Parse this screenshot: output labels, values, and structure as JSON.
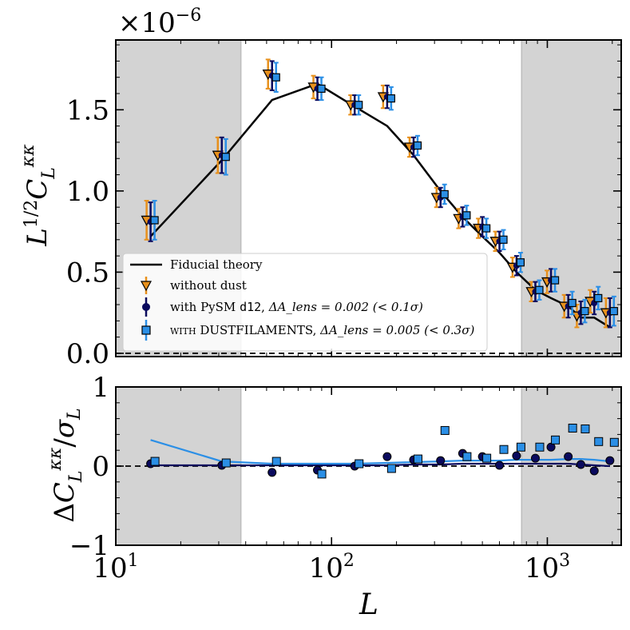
{
  "chart_data": [
    {
      "type": "line",
      "ylabel": "L^{1/2} C_L^{κκ}",
      "scale_factor_label": "×10",
      "scale_factor_exponent": "−6",
      "xscale": "log",
      "xlim": [
        10,
        2200
      ],
      "ylim": [
        -0.02,
        1.93
      ],
      "yticks": [
        0.0,
        0.5,
        1.0,
        1.5
      ],
      "ytick_labels": [
        "0.0",
        "0.5",
        "1.0",
        "1.5"
      ],
      "shaded_ranges": [
        [
          10,
          38
        ],
        [
          760,
          2200
        ]
      ],
      "zero_line": "dashed",
      "legend_position": "lower-left",
      "series": [
        {
          "name": "Fiducial theory",
          "kind": "line",
          "color": "#000000",
          "x": [
            14.5,
            31,
            53,
            86,
            128,
            181,
            240,
            320,
            405,
            500,
            600,
            720,
            880,
            1040,
            1250,
            1430,
            1650,
            1950
          ],
          "y": [
            0.72,
            1.19,
            1.56,
            1.66,
            1.52,
            1.4,
            1.22,
            1.0,
            0.84,
            0.72,
            0.62,
            0.5,
            0.39,
            0.34,
            0.29,
            0.22,
            0.22,
            0.16
          ]
        },
        {
          "name": "without dust",
          "kind": "errorbar",
          "marker": "triangle-down",
          "color": "#e8911c",
          "x": [
            14.5,
            31,
            53,
            86,
            128,
            181,
            240,
            320,
            405,
            500,
            600,
            720,
            880,
            1040,
            1250,
            1430,
            1650,
            1950
          ],
          "y": [
            0.82,
            1.22,
            1.72,
            1.64,
            1.53,
            1.58,
            1.27,
            0.96,
            0.83,
            0.77,
            0.69,
            0.53,
            0.38,
            0.44,
            0.29,
            0.23,
            0.32,
            0.25
          ],
          "err": [
            0.12,
            0.11,
            0.09,
            0.07,
            0.06,
            0.07,
            0.06,
            0.06,
            0.06,
            0.06,
            0.06,
            0.06,
            0.06,
            0.07,
            0.07,
            0.07,
            0.07,
            0.09
          ]
        },
        {
          "name_prefix": "with PySM",
          "name_code": "d12",
          "name_suffix": "ΔA_lens = 0.002 (< 0.1σ)",
          "kind": "errorbar",
          "marker": "circle",
          "color": "#0a0a5e",
          "x": [
            14.5,
            31,
            53,
            86,
            128,
            181,
            240,
            320,
            405,
            500,
            600,
            720,
            880,
            1040,
            1250,
            1430,
            1650,
            1950
          ],
          "y": [
            0.81,
            1.22,
            1.71,
            1.63,
            1.53,
            1.58,
            1.27,
            0.96,
            0.84,
            0.78,
            0.69,
            0.54,
            0.38,
            0.45,
            0.29,
            0.25,
            0.31,
            0.25
          ],
          "err": [
            0.12,
            0.11,
            0.09,
            0.07,
            0.06,
            0.07,
            0.06,
            0.06,
            0.06,
            0.06,
            0.06,
            0.06,
            0.06,
            0.07,
            0.07,
            0.07,
            0.07,
            0.09
          ]
        },
        {
          "name_prefix": "with DUSTFILAMENTS,",
          "name_suffix": "ΔA_lens = 0.005 (< 0.3σ)",
          "kind": "errorbar",
          "marker": "square",
          "color": "#2b8fe6",
          "x": [
            14.5,
            31,
            53,
            86,
            128,
            181,
            240,
            320,
            405,
            500,
            600,
            720,
            880,
            1040,
            1250,
            1430,
            1650,
            1950
          ],
          "y": [
            0.82,
            1.21,
            1.7,
            1.63,
            1.53,
            1.57,
            1.28,
            0.98,
            0.85,
            0.77,
            0.7,
            0.56,
            0.39,
            0.45,
            0.31,
            0.26,
            0.34,
            0.26
          ],
          "err": [
            0.12,
            0.11,
            0.09,
            0.07,
            0.06,
            0.07,
            0.06,
            0.06,
            0.06,
            0.06,
            0.06,
            0.06,
            0.06,
            0.07,
            0.07,
            0.07,
            0.07,
            0.09
          ]
        }
      ]
    },
    {
      "type": "scatter",
      "xlabel": "L",
      "ylabel": "ΔC_L^{κκ}/σ_L",
      "xscale": "log",
      "xlim": [
        10,
        2200
      ],
      "ylim": [
        -1,
        1
      ],
      "yticks": [
        -1,
        0,
        1
      ],
      "ytick_labels": [
        "−1",
        "0",
        "1"
      ],
      "xticks": [
        10,
        100,
        1000
      ],
      "xtick_labels": [
        "10",
        "10",
        "10"
      ],
      "xtick_exponents": [
        "1",
        "2",
        "3"
      ],
      "shaded_ranges": [
        [
          10,
          38
        ],
        [
          760,
          2200
        ]
      ],
      "zero_line": "dashed",
      "series": [
        {
          "name": "with PySM d12",
          "kind": "scatter",
          "marker": "circle",
          "color": "#0a0a5e",
          "x": [
            14.5,
            31,
            53,
            86,
            128,
            181,
            240,
            320,
            405,
            500,
            600,
            720,
            880,
            1040,
            1250,
            1430,
            1650,
            1950
          ],
          "y": [
            0.03,
            0.01,
            -0.08,
            -0.05,
            0.0,
            0.12,
            0.08,
            0.07,
            0.16,
            0.12,
            0.01,
            0.13,
            0.1,
            0.24,
            0.12,
            0.02,
            -0.06,
            0.07
          ]
        },
        {
          "name": "with DUSTFILAMENTS",
          "kind": "scatter",
          "marker": "square",
          "color": "#2b8fe6",
          "x": [
            14.5,
            31,
            53,
            86,
            128,
            181,
            240,
            320,
            405,
            500,
            600,
            720,
            880,
            1040,
            1250,
            1430,
            1650,
            1950
          ],
          "y": [
            0.06,
            0.04,
            0.06,
            -0.1,
            0.03,
            -0.03,
            0.09,
            0.45,
            0.12,
            0.1,
            0.21,
            0.24,
            0.24,
            0.33,
            0.48,
            0.47,
            0.31,
            0.3
          ]
        },
        {
          "name": "theory shift d12",
          "kind": "line",
          "color": "#0a0a5e",
          "x": [
            14.5,
            31,
            53,
            86,
            128,
            181,
            240,
            320,
            405,
            500,
            600,
            720,
            880,
            1040,
            1250,
            1430,
            1650,
            1950
          ],
          "y": [
            0.01,
            0.01,
            0.01,
            0.01,
            0.01,
            0.01,
            0.02,
            0.02,
            0.03,
            0.03,
            0.03,
            0.03,
            0.03,
            0.03,
            0.03,
            0.02,
            0.01,
            0.0
          ]
        },
        {
          "name": "theory shift DUSTFILAMENTS",
          "kind": "line",
          "color": "#2b8fe6",
          "x": [
            14.5,
            31,
            53,
            86,
            128,
            181,
            240,
            320,
            405,
            500,
            600,
            720,
            880,
            1040,
            1250,
            1430,
            1650,
            1950
          ],
          "y": [
            0.33,
            0.06,
            0.03,
            0.03,
            0.03,
            0.04,
            0.05,
            0.06,
            0.07,
            0.07,
            0.07,
            0.08,
            0.08,
            0.08,
            0.09,
            0.09,
            0.08,
            0.06
          ]
        }
      ]
    }
  ],
  "legend": {
    "items": [
      {
        "label": "Fiducial theory"
      },
      {
        "label": "without dust"
      },
      {
        "label_prefix": "with PySM",
        "label_code": "d12",
        "label_suffix": "ΔA_lens = 0.002 (< 0.1σ)"
      },
      {
        "label_prefix": "with DUSTFILAMENTS,",
        "label_suffix": "ΔA_lens = 0.005 (< 0.3σ)"
      }
    ]
  }
}
